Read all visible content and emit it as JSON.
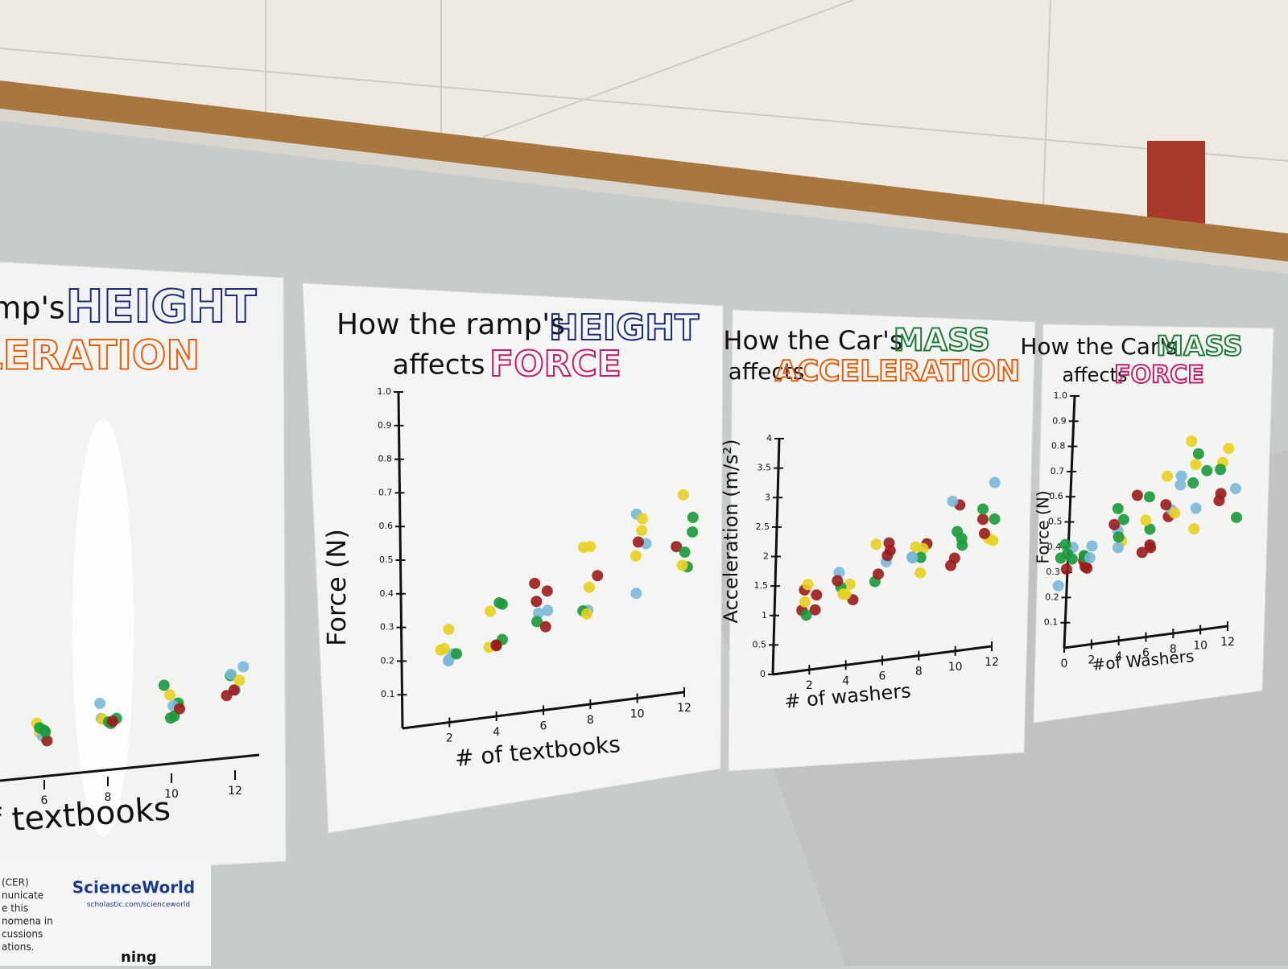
{
  "posters": [
    {
      "title_lines": [
        "mp's",
        "HEIGHT",
        "LERATION"
      ],
      "x_ticks": [
        "6",
        "8",
        "10",
        "12"
      ],
      "x_label": "f textbooks"
    },
    {
      "title_lines": [
        "How the ramp's",
        "HEIGHT",
        "affects",
        "FORCE"
      ],
      "y_label": "Force (N)",
      "y_ticks": [
        "0.1",
        "0.2",
        "0.3",
        "0.4",
        "0.5",
        "0.6",
        "0.7",
        "0.8",
        "0.9",
        "1.0"
      ],
      "x_ticks": [
        "2",
        "4",
        "6",
        "8",
        "10",
        "12"
      ],
      "x_label": "# of textbooks"
    },
    {
      "title_lines": [
        "How the Car's",
        "MASS",
        "affects",
        "ACCELERATION"
      ],
      "y_label": "Acceleration (m/s²)",
      "y_ticks": [
        "0",
        "0.5",
        "1",
        "1.5",
        "2",
        "2.5",
        "3",
        "3.5",
        "4"
      ],
      "x_ticks": [
        "2",
        "4",
        "6",
        "8",
        "10",
        "12"
      ],
      "x_label": "# of washers"
    },
    {
      "title_lines": [
        "How the Car's",
        "MASS",
        "affects",
        "FORCE"
      ],
      "y_label": "Force (N)",
      "y_ticks": [
        "0.1",
        "0.2",
        "0.3",
        "0.4",
        "0.5",
        "0.6",
        "0.7",
        "0.8",
        "0.9",
        "1.0"
      ],
      "x_ticks": [
        "0",
        "2",
        "4",
        "6",
        "8",
        "10",
        "12"
      ],
      "x_label": "#of Washers"
    }
  ],
  "flyer": {
    "brand": "ScienceWorld",
    "url": "scholastic.com/scienceworld",
    "text_lines": [
      "(CER)",
      "nunicate",
      "e this",
      "nomena in",
      "cussions",
      "ations."
    ],
    "footer": "ning"
  }
}
